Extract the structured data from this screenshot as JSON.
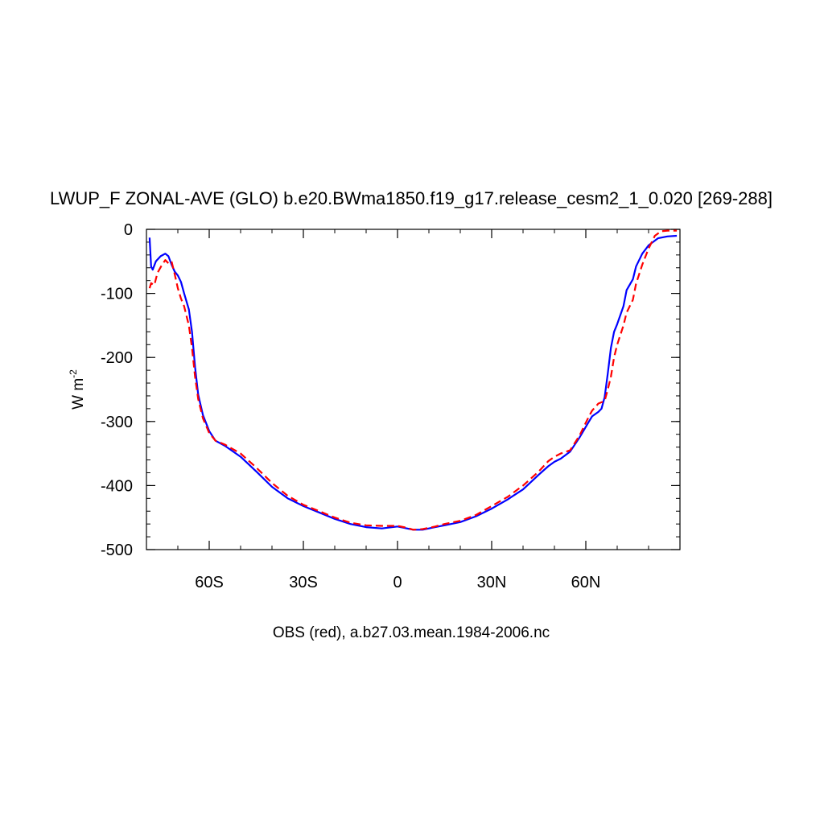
{
  "chart_data": {
    "type": "line",
    "title": "LWUP_F ZONAL-AVE (GLO) b.e20.BWma1850.f19_g17.release_cesm2_1_0.020 [269-288]",
    "ylabel": "W m",
    "ylabel_superscript": "-2",
    "xlabel": "OBS (red), a.b27.03.mean.1984-2006.nc",
    "xlim": [
      -80,
      90
    ],
    "ylim": [
      -500,
      0
    ],
    "x_ticks": [
      {
        "value": -60,
        "label": "60S"
      },
      {
        "value": -30,
        "label": "30S"
      },
      {
        "value": 0,
        "label": "0"
      },
      {
        "value": 30,
        "label": "30N"
      },
      {
        "value": 60,
        "label": "60N"
      }
    ],
    "y_ticks": [
      {
        "value": 0,
        "label": "0"
      },
      {
        "value": -100,
        "label": "-100"
      },
      {
        "value": -200,
        "label": "-200"
      },
      {
        "value": -300,
        "label": "-300"
      },
      {
        "value": -400,
        "label": "-400"
      },
      {
        "value": -500,
        "label": "-500"
      }
    ],
    "series": [
      {
        "style": "solid",
        "color": "#0000ff",
        "points": [
          [
            -79,
            -13
          ],
          [
            -78.5,
            -58
          ],
          [
            -78,
            -63
          ],
          [
            -77,
            -50
          ],
          [
            -75.5,
            -42
          ],
          [
            -74,
            -38
          ],
          [
            -73,
            -42
          ],
          [
            -72,
            -55
          ],
          [
            -71,
            -66
          ],
          [
            -70,
            -72
          ],
          [
            -69,
            -82
          ],
          [
            -68,
            -100
          ],
          [
            -66.5,
            -125
          ],
          [
            -65.5,
            -160
          ],
          [
            -64.5,
            -215
          ],
          [
            -63.5,
            -258
          ],
          [
            -62,
            -290
          ],
          [
            -60,
            -315
          ],
          [
            -58,
            -330
          ],
          [
            -55,
            -338
          ],
          [
            -50,
            -355
          ],
          [
            -45,
            -378
          ],
          [
            -40,
            -402
          ],
          [
            -35,
            -420
          ],
          [
            -30,
            -432
          ],
          [
            -25,
            -442
          ],
          [
            -20,
            -452
          ],
          [
            -15,
            -460
          ],
          [
            -10,
            -465
          ],
          [
            -5,
            -467
          ],
          [
            0,
            -464
          ],
          [
            3,
            -467
          ],
          [
            5,
            -469
          ],
          [
            8,
            -469
          ],
          [
            12,
            -465
          ],
          [
            15,
            -462
          ],
          [
            20,
            -457
          ],
          [
            25,
            -448
          ],
          [
            30,
            -436
          ],
          [
            35,
            -422
          ],
          [
            40,
            -406
          ],
          [
            45,
            -383
          ],
          [
            48,
            -370
          ],
          [
            50,
            -363
          ],
          [
            52,
            -358
          ],
          [
            55,
            -347
          ],
          [
            58,
            -325
          ],
          [
            61,
            -300
          ],
          [
            62,
            -292
          ],
          [
            64,
            -285
          ],
          [
            65,
            -280
          ],
          [
            66,
            -262
          ],
          [
            67,
            -225
          ],
          [
            68,
            -185
          ],
          [
            69,
            -160
          ],
          [
            70,
            -148
          ],
          [
            72,
            -120
          ],
          [
            73,
            -95
          ],
          [
            75,
            -78
          ],
          [
            76,
            -58
          ],
          [
            78,
            -38
          ],
          [
            80,
            -25
          ],
          [
            83,
            -14
          ],
          [
            86,
            -11
          ],
          [
            89,
            -10
          ]
        ]
      },
      {
        "style": "dashed",
        "color": "#ff0000",
        "points": [
          [
            -79,
            -92
          ],
          [
            -78.5,
            -84
          ],
          [
            -77.5,
            -87
          ],
          [
            -76.5,
            -68
          ],
          [
            -75,
            -55
          ],
          [
            -74,
            -48
          ],
          [
            -73,
            -53
          ],
          [
            -72,
            -50
          ],
          [
            -71,
            -70
          ],
          [
            -70,
            -92
          ],
          [
            -69,
            -108
          ],
          [
            -68,
            -120
          ],
          [
            -66.5,
            -150
          ],
          [
            -65.5,
            -185
          ],
          [
            -64.5,
            -230
          ],
          [
            -63.5,
            -265
          ],
          [
            -62,
            -295
          ],
          [
            -60,
            -318
          ],
          [
            -58,
            -330
          ],
          [
            -55,
            -336
          ],
          [
            -50,
            -350
          ],
          [
            -45,
            -372
          ],
          [
            -40,
            -396
          ],
          [
            -35,
            -416
          ],
          [
            -30,
            -430
          ],
          [
            -25,
            -440
          ],
          [
            -20,
            -450
          ],
          [
            -15,
            -458
          ],
          [
            -10,
            -462
          ],
          [
            -5,
            -463
          ],
          [
            0,
            -463
          ],
          [
            3,
            -466
          ],
          [
            5,
            -469
          ],
          [
            8,
            -468
          ],
          [
            12,
            -464
          ],
          [
            15,
            -460
          ],
          [
            20,
            -455
          ],
          [
            25,
            -446
          ],
          [
            30,
            -432
          ],
          [
            35,
            -418
          ],
          [
            40,
            -400
          ],
          [
            45,
            -378
          ],
          [
            48,
            -362
          ],
          [
            50,
            -355
          ],
          [
            52,
            -350
          ],
          [
            55,
            -345
          ],
          [
            58,
            -322
          ],
          [
            61,
            -292
          ],
          [
            62,
            -283
          ],
          [
            64,
            -272
          ],
          [
            66,
            -268
          ],
          [
            67,
            -250
          ],
          [
            68,
            -230
          ],
          [
            69,
            -200
          ],
          [
            70,
            -180
          ],
          [
            72,
            -150
          ],
          [
            73,
            -130
          ],
          [
            75,
            -110
          ],
          [
            76,
            -85
          ],
          [
            78,
            -55
          ],
          [
            80,
            -30
          ],
          [
            82,
            -10
          ],
          [
            84,
            -3
          ],
          [
            86,
            -2
          ],
          [
            89,
            -2
          ]
        ]
      }
    ]
  }
}
